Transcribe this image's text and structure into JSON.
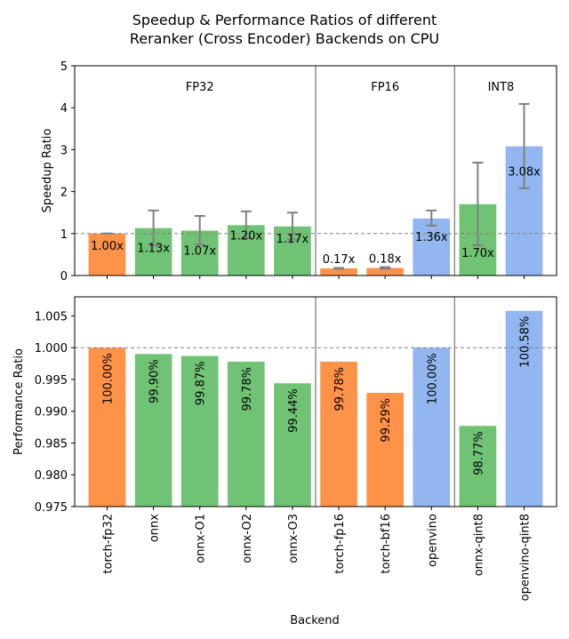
{
  "chart_data": {
    "title_lines": [
      "Speedup & Performance Ratios of different",
      "Reranker (Cross Encoder) Backends on CPU"
    ],
    "categories": [
      "torch-fp32",
      "onnx",
      "onnx-O1",
      "onnx-O2",
      "onnx-O3",
      "torch-fp16",
      "torch-bf16",
      "openvino",
      "onnx-qint8",
      "openvino-qint8"
    ],
    "xlabel": "Backend",
    "groups": [
      {
        "label": "FP32",
        "start": 0,
        "end": 4
      },
      {
        "label": "FP16",
        "start": 5,
        "end": 7
      },
      {
        "label": "INT8",
        "start": 8,
        "end": 9
      }
    ],
    "bar_colors": [
      "orange",
      "green",
      "green",
      "green",
      "green",
      "orange",
      "orange",
      "blue",
      "green",
      "blue"
    ],
    "colors": {
      "orange": "#fe9248",
      "green": "#70c375",
      "blue": "#92b6f0",
      "error": "#808080",
      "separator": "#808080",
      "reference": "#808080"
    },
    "subplots": [
      {
        "type": "bar",
        "name": "speedup",
        "ylabel": "Speedup Ratio",
        "ylim": [
          0,
          5
        ],
        "yticks": [
          "0",
          "1",
          "2",
          "3",
          "4",
          "5"
        ],
        "ytick_values": [
          0,
          1,
          2,
          3,
          4,
          5
        ],
        "reference_line": 1.0,
        "values": [
          1.0,
          1.13,
          1.07,
          1.2,
          1.17,
          0.17,
          0.18,
          1.36,
          1.7,
          3.08
        ],
        "labels": [
          "1.00x",
          "1.13x",
          "1.07x",
          "1.20x",
          "1.17x",
          "0.17x",
          "0.18x",
          "1.36x",
          "1.70x",
          "3.08x"
        ],
        "error_low": [
          1.0,
          0.72,
          0.74,
          0.89,
          0.85,
          0.16,
          0.16,
          1.19,
          0.72,
          2.08
        ],
        "error_high": [
          1.0,
          1.55,
          1.42,
          1.53,
          1.5,
          0.18,
          0.2,
          1.55,
          2.69,
          4.09
        ]
      },
      {
        "type": "bar",
        "name": "performance",
        "ylabel": "Performance Ratio",
        "ylim": [
          0.975,
          1.008
        ],
        "yticks": [
          "0.975",
          "0.980",
          "0.985",
          "0.990",
          "0.995",
          "1.000",
          "1.005"
        ],
        "ytick_values": [
          0.975,
          0.98,
          0.985,
          0.99,
          0.995,
          1.0,
          1.005
        ],
        "reference_line": 1.0,
        "values": [
          1.0,
          0.999,
          0.9987,
          0.9978,
          0.9944,
          0.9978,
          0.9929,
          1.0,
          0.9877,
          1.0058
        ],
        "labels": [
          "100.00%",
          "99.90%",
          "99.87%",
          "99.78%",
          "99.44%",
          "99.78%",
          "99.29%",
          "100.00%",
          "98.77%",
          "100.58%"
        ]
      }
    ]
  }
}
